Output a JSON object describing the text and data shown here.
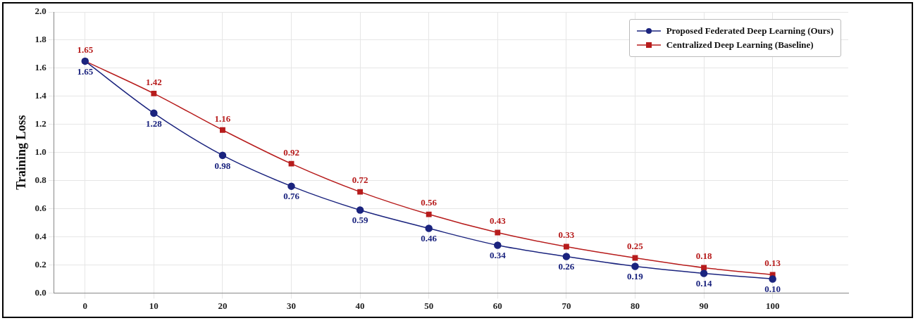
{
  "chart_data": {
    "type": "line",
    "ylabel": "Training Loss",
    "x": [
      0,
      10,
      20,
      30,
      40,
      50,
      60,
      70,
      80,
      90,
      100
    ],
    "series": [
      {
        "name": "Proposed Federated Deep Learning (Ours)",
        "color": "#1a237e",
        "marker": "circle",
        "values": [
          1.65,
          1.28,
          0.98,
          0.76,
          0.59,
          0.46,
          0.34,
          0.26,
          0.19,
          0.14,
          0.1
        ],
        "value_labels": [
          "1.65",
          "1.28",
          "0.98",
          "0.76",
          "0.59",
          "0.46",
          "0.34",
          "0.26",
          "0.19",
          "0.14",
          "0.10"
        ]
      },
      {
        "name": "Centralized Deep Learning (Baseline)",
        "color": "#b71c1c",
        "marker": "square",
        "values": [
          1.65,
          1.42,
          1.16,
          0.92,
          0.72,
          0.56,
          0.43,
          0.33,
          0.25,
          0.18,
          0.13
        ],
        "value_labels": [
          "1.65",
          "1.42",
          "1.16",
          "0.92",
          "0.72",
          "0.56",
          "0.43",
          "0.33",
          "0.25",
          "0.18",
          "0.13"
        ]
      }
    ],
    "xlim": [
      -4.5,
      111
    ],
    "xticks": [
      0,
      10,
      20,
      30,
      40,
      50,
      60,
      70,
      80,
      90,
      100
    ],
    "ylim": [
      0,
      2
    ],
    "yticks": [
      {
        "value": 0,
        "label": "0.0"
      },
      {
        "value": 0.2,
        "label": "0.2"
      },
      {
        "value": 0.4,
        "label": "0.4"
      },
      {
        "value": 0.6,
        "label": "0.6"
      },
      {
        "value": 0.8,
        "label": "0.8"
      },
      {
        "value": 1,
        "label": "1.0"
      },
      {
        "value": 1.2,
        "label": "1.2"
      },
      {
        "value": 1.4,
        "label": "1.4"
      },
      {
        "value": 1.6,
        "label": "1.6"
      },
      {
        "value": 1.8,
        "label": "1.8"
      },
      {
        "value": 2,
        "label": "2.0"
      }
    ],
    "grid": true,
    "legend": "top right"
  }
}
